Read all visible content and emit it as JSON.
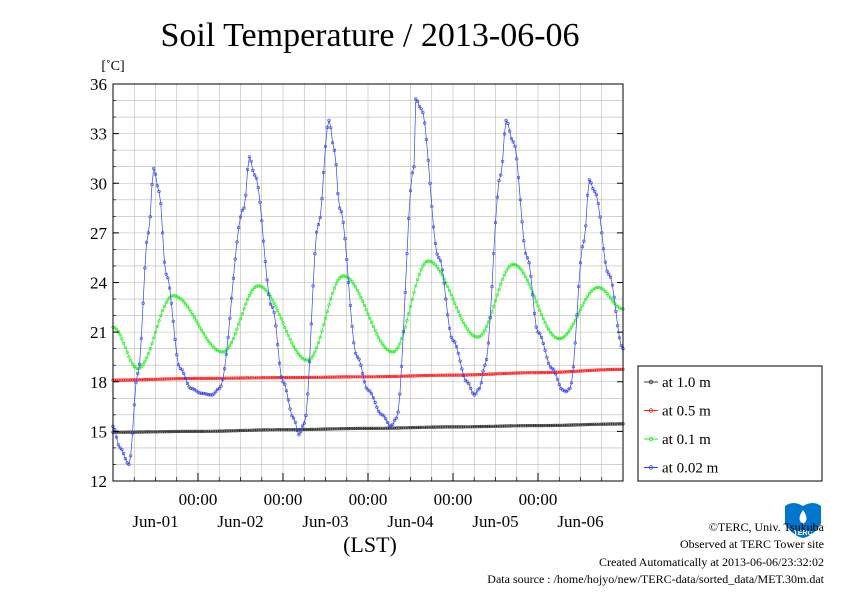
{
  "chart_data": {
    "type": "line",
    "title": "Soil Temperature / 2013-06-06",
    "ylabel": "[˚C]",
    "xlabel": "(LST)",
    "ylim": [
      12,
      36
    ],
    "yticks": [
      12,
      15,
      18,
      21,
      24,
      27,
      30,
      33,
      36
    ],
    "x_unit": "hours from 2013-05-31 00:00 LST",
    "xlim": [
      0,
      144
    ],
    "x_time_labels": [
      "00:00",
      "00:00",
      "00:00",
      "00:00",
      "00:00"
    ],
    "x_time_positions": [
      24,
      48,
      72,
      96,
      120
    ],
    "x_date_labels": [
      "Jun-01",
      "Jun-02",
      "Jun-03",
      "Jun-04",
      "Jun-05",
      "Jun-06"
    ],
    "x_date_positions": [
      12,
      36,
      60,
      84,
      108,
      132
    ],
    "grid": true,
    "legend_position": "right",
    "series": [
      {
        "name": "at 1.0 m",
        "color": "#333333",
        "x": [
          0,
          24,
          48,
          72,
          96,
          120,
          144
        ],
        "values": [
          14.95,
          15.0,
          15.1,
          15.18,
          15.27,
          15.35,
          15.45
        ]
      },
      {
        "name": "at 0.5 m",
        "color": "#ff2020",
        "x": [
          0,
          24,
          48,
          72,
          96,
          120,
          144
        ],
        "values": [
          18.1,
          18.2,
          18.25,
          18.3,
          18.4,
          18.55,
          18.75
        ]
      },
      {
        "name": "at 0.1 m",
        "color": "#22ee22",
        "x": [
          0,
          7,
          17,
          31,
          41,
          55,
          65,
          79,
          89,
          103,
          113,
          126,
          137,
          144
        ],
        "values": [
          21.3,
          18.8,
          23.2,
          19.8,
          23.8,
          19.3,
          24.4,
          19.8,
          25.3,
          20.7,
          25.1,
          20.6,
          23.7,
          22.4
        ]
      },
      {
        "name": "at 0.02 m",
        "color": "#3344ee",
        "x": [
          0,
          2,
          4.5,
          7,
          10,
          11.5,
          13,
          15,
          19,
          22,
          25,
          28,
          30,
          37,
          38.5,
          40,
          45,
          48,
          51,
          52.5,
          54,
          58,
          61,
          62.5,
          64,
          69,
          72,
          76,
          78.5,
          80,
          85,
          85.5,
          87,
          92,
          96,
          100,
          102,
          103.5,
          105,
          109.5,
          111,
          113,
          117,
          120,
          124,
          127,
          128,
          129,
          133,
          134.5,
          136,
          140,
          144
        ],
        "values": [
          15.3,
          14.0,
          13.0,
          18.5,
          27.0,
          30.9,
          29.5,
          24.5,
          18.8,
          17.6,
          17.3,
          17.2,
          17.6,
          28.5,
          31.6,
          30.5,
          22.5,
          18.0,
          15.8,
          14.8,
          15.5,
          27.5,
          33.8,
          32.0,
          28.5,
          19.5,
          17.5,
          16.0,
          15.3,
          15.8,
          31.0,
          35.1,
          34.5,
          25.5,
          20.5,
          18.0,
          17.2,
          17.6,
          19.0,
          30.5,
          33.8,
          32.5,
          25.5,
          21.0,
          18.8,
          17.5,
          17.4,
          17.6,
          26.5,
          30.2,
          29.5,
          24.5,
          20.0
        ]
      }
    ]
  },
  "footer": {
    "copyright": "©TERC, Univ. Tsukuba",
    "observed": "Observed at TERC Tower site",
    "created": "Created Automatically at 2013-06-06/23:32:02",
    "source": "Data source : /home/hojyo/new/TERC-data/sorted_data/MET.30m.dat"
  },
  "logo_text": "TERC",
  "logo_color": "#0077cc"
}
